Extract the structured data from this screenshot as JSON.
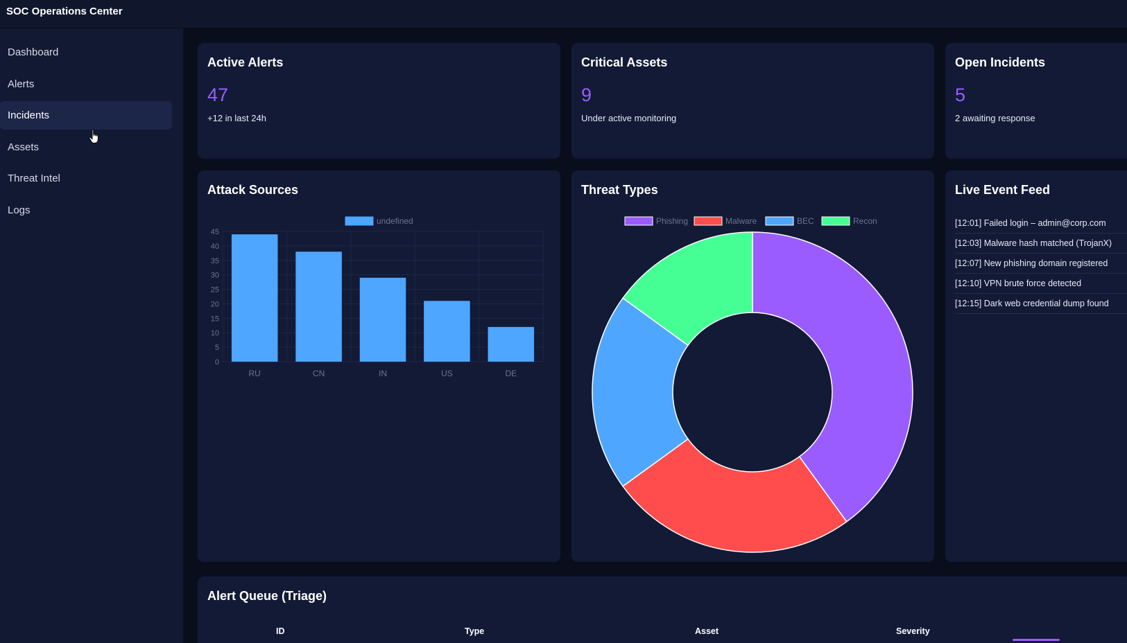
{
  "app": {
    "title": "SOC Operations Center"
  },
  "sidebar": {
    "items": [
      {
        "label": "Dashboard",
        "active": false
      },
      {
        "label": "Alerts",
        "active": false
      },
      {
        "label": "Incidents",
        "active": true
      },
      {
        "label": "Assets",
        "active": false
      },
      {
        "label": "Threat Intel",
        "active": false
      },
      {
        "label": "Logs",
        "active": false
      }
    ]
  },
  "kpis": {
    "active_alerts": {
      "title": "Active Alerts",
      "value": "47",
      "sub": "+12 in last 24h"
    },
    "critical_assets": {
      "title": "Critical Assets",
      "value": "9",
      "sub": "Under active monitoring"
    },
    "open_incidents": {
      "title": "Open Incidents",
      "value": "5",
      "sub": "2 awaiting response"
    }
  },
  "panels": {
    "attack_sources_title": "Attack Sources",
    "threat_types_title": "Threat Types",
    "live_feed_title": "Live Event Feed",
    "alert_queue_title": "Alert Queue (Triage)"
  },
  "live_feed": [
    "[12:01] Failed login – admin@corp.com",
    "[12:03] Malware hash matched (TrojanX)",
    "[12:07] New phishing domain registered",
    "[12:10] VPN brute force detected",
    "[12:15] Dark web credential dump found"
  ],
  "alert_queue": {
    "columns": [
      "ID",
      "Type",
      "Asset",
      "Severity"
    ]
  },
  "colors": {
    "accent": "#9b5cff",
    "bar": "#4ea6ff",
    "phishing": "#9b5cff",
    "malware": "#ff4d4d",
    "bec": "#4ea6ff",
    "recon": "#45ff95"
  },
  "chart_data": [
    {
      "type": "bar",
      "title": "Attack Sources",
      "legend": [
        "undefined"
      ],
      "categories": [
        "RU",
        "CN",
        "IN",
        "US",
        "DE"
      ],
      "values": [
        44,
        38,
        29,
        21,
        12
      ],
      "ylim": [
        0,
        45
      ],
      "yticks": [
        "0",
        "5",
        "10",
        "15",
        "20",
        "25",
        "30",
        "35",
        "40",
        "45"
      ],
      "legend_position": "top"
    },
    {
      "type": "pie",
      "title": "Threat Types",
      "labels": [
        "Phishing",
        "Malware",
        "BEC",
        "Recon"
      ],
      "values": [
        40,
        25,
        20,
        15
      ],
      "donut": true,
      "legend_position": "top"
    }
  ]
}
